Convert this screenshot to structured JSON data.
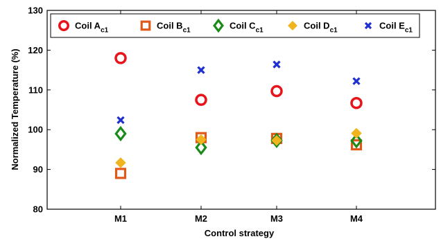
{
  "chart_data": {
    "type": "scatter",
    "categories": [
      "M1",
      "M2",
      "M3",
      "M4"
    ],
    "xlabel": "Control strategy",
    "ylabel": "Normalized Temperature (%)",
    "ylim": [
      80,
      130
    ],
    "yticks": [
      80,
      90,
      100,
      110,
      120,
      130
    ],
    "grid": false,
    "legend_position": "top",
    "series": [
      {
        "name": "Coil A",
        "name_sub": "c1",
        "marker": "circle",
        "color": "#e8141c",
        "values": [
          118,
          107.5,
          109.7,
          106.7
        ]
      },
      {
        "name": "Coil B",
        "name_sub": "c1",
        "marker": "square",
        "color": "#e0591b",
        "values": [
          89,
          98,
          97.8,
          96.2
        ]
      },
      {
        "name": "Coil C",
        "name_sub": "c1",
        "marker": "diamond",
        "color": "#1a8a1a",
        "values": [
          99,
          95.5,
          97.3,
          97.2
        ]
      },
      {
        "name": "Coil D",
        "name_sub": "c1",
        "marker": "filled-diamond",
        "color": "#f0b41e",
        "values": [
          91.7,
          97.5,
          97.3,
          99.1
        ]
      },
      {
        "name": "Coil E",
        "name_sub": "c1",
        "marker": "x",
        "color": "#1f2fd0",
        "values": [
          102.4,
          115,
          116.4,
          112.2
        ]
      }
    ]
  }
}
